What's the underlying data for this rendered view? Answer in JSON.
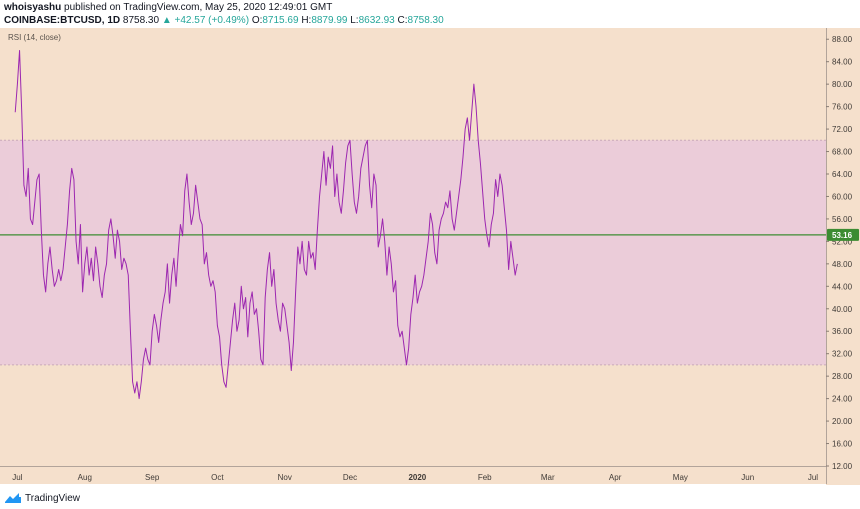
{
  "header": {
    "author": "whoisyashu",
    "published": "published on TradingView.com, May 25, 2020 12:49:01 GMT",
    "symbol": "COINBASE:BTCUSD, 1D",
    "last": "8758.30",
    "change_arrow": "▲",
    "change": "+42.57 (+0.49%)",
    "open_label": "O:",
    "open": "8715.69",
    "high_label": "H:",
    "high": "8879.99",
    "low_label": "L:",
    "low": "8632.93",
    "close_label": "C:",
    "close": "8758.30"
  },
  "footer": {
    "brand": "TradingView",
    "logo_icon": "tradingview-logo-icon"
  },
  "colors": {
    "background": "#f5e0cc",
    "band": "#e9c8db",
    "rsi_line": "#9c27b0",
    "level_line": "#3c8c32",
    "value_badge": "#3c8c32"
  },
  "chart_data": {
    "type": "line",
    "indicator": "RSI (14, close)",
    "last_value_label": "53.16",
    "level": 53.16,
    "band": [
      30,
      70
    ],
    "ylim": [
      12,
      90
    ],
    "y_ticks": [
      "12.00",
      "16.00",
      "20.00",
      "24.00",
      "28.00",
      "32.00",
      "36.00",
      "40.00",
      "44.00",
      "48.00",
      "52.00",
      "56.00",
      "60.00",
      "64.00",
      "68.00",
      "72.00",
      "76.00",
      "80.00",
      "84.00",
      "88.00"
    ],
    "x_ticks": [
      "Jul",
      "Aug",
      "Sep",
      "Oct",
      "Nov",
      "Dec",
      "2020",
      "Feb",
      "Mar",
      "Apr",
      "May",
      "Jun",
      "Jul"
    ],
    "x_tick_positions": [
      1,
      32,
      63,
      93,
      124,
      154,
      185,
      216,
      245,
      276,
      306,
      337,
      367
    ],
    "xlim": [
      -7,
      373
    ],
    "series": [
      {
        "values": [
          75,
          80,
          86,
          75,
          62,
          60,
          65,
          56,
          55,
          59,
          63,
          64,
          54,
          46,
          43,
          48,
          51,
          47,
          44,
          45,
          47,
          45,
          47,
          51,
          55,
          61,
          65,
          63,
          52,
          48,
          55,
          43,
          48,
          51,
          46,
          49,
          45,
          51,
          48,
          44,
          42,
          46,
          48,
          54,
          56,
          53,
          49,
          54,
          52,
          47,
          49,
          48,
          46,
          36,
          27,
          25,
          27,
          24,
          27,
          31,
          33,
          31,
          30,
          36,
          39,
          37,
          34,
          38,
          41,
          43,
          48,
          41,
          46,
          49,
          44,
          50,
          55,
          53,
          61,
          64,
          59,
          55,
          57,
          62,
          59,
          56,
          55,
          48,
          50,
          46,
          44,
          45,
          43,
          37,
          35,
          30,
          27,
          26,
          30,
          34,
          38,
          41,
          36,
          38,
          44,
          40,
          42,
          35,
          41,
          43,
          39,
          40,
          36,
          31,
          30,
          42,
          47,
          50,
          44,
          47,
          41,
          38,
          36,
          41,
          40,
          37,
          34,
          29,
          34,
          43,
          51,
          48,
          52,
          47,
          46,
          52,
          49,
          50,
          47,
          54,
          60,
          64,
          68,
          62,
          67,
          65,
          69,
          60,
          64,
          59,
          57,
          61,
          66,
          69,
          70,
          64,
          59,
          57,
          60,
          65,
          67,
          69,
          70,
          62,
          58,
          64,
          62,
          51,
          53,
          56,
          52,
          46,
          51,
          48,
          43,
          45,
          37,
          35,
          36,
          33,
          30,
          33,
          39,
          42,
          46,
          41,
          43,
          44,
          46,
          49,
          52,
          57,
          55,
          50,
          48,
          54,
          56,
          57,
          59,
          58,
          61,
          56,
          54,
          57,
          60,
          63,
          67,
          72,
          74,
          70,
          75,
          80,
          76,
          70,
          66,
          61,
          56,
          53,
          51,
          55,
          57,
          63,
          60,
          64,
          62,
          58,
          54,
          47,
          52,
          49,
          46,
          48
        ]
      }
    ]
  }
}
